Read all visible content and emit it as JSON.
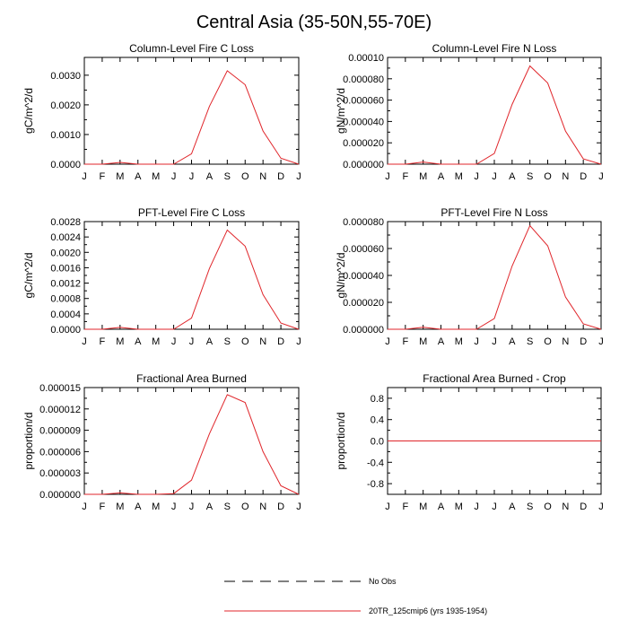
{
  "title": "Central Asia (35-50N,55-70E)",
  "legend": {
    "entries": [
      {
        "label": "No Obs",
        "style": "dashed",
        "color": "#000000"
      },
      {
        "label": "20TR_125cmip6 (yrs 1935-1954)",
        "style": "solid",
        "color": "#e0262b"
      }
    ]
  },
  "chart_data": [
    {
      "type": "line",
      "title": "Column-Level Fire C Loss",
      "ylabel": "gC/m^2/d",
      "ylim": [
        0,
        0.0036
      ],
      "yticks": [
        0,
        0.001,
        0.002,
        0.003
      ],
      "yticklabels": [
        "0.0000",
        "0.0010",
        "0.0020",
        "0.0030"
      ],
      "x": [
        "J",
        "F",
        "M",
        "A",
        "M",
        "J",
        "J",
        "A",
        "S",
        "O",
        "N",
        "D",
        "J"
      ],
      "series": [
        {
          "color": "#e0262b",
          "values": [
            0,
            0,
            6e-05,
            0,
            0,
            0,
            0.00035,
            0.00195,
            0.00315,
            0.00268,
            0.00112,
            0.0002,
            0
          ]
        }
      ]
    },
    {
      "type": "line",
      "title": "Column-Level Fire N Loss",
      "ylabel": "gN/m^2/d",
      "ylim": [
        0,
        0.0001
      ],
      "yticks": [
        0,
        2e-05,
        4e-05,
        6e-05,
        8e-05,
        0.0001
      ],
      "yticklabels": [
        "0.000000",
        "0.000020",
        "0.000040",
        "0.000060",
        "0.000080",
        "0.00010"
      ],
      "x": [
        "J",
        "F",
        "M",
        "A",
        "M",
        "J",
        "J",
        "A",
        "S",
        "O",
        "N",
        "D",
        "J"
      ],
      "series": [
        {
          "color": "#e0262b",
          "values": [
            0,
            0,
            2e-06,
            0,
            0,
            0,
            1e-05,
            5.6e-05,
            9.2e-05,
            7.6e-05,
            3.1e-05,
            5e-06,
            0
          ]
        }
      ]
    },
    {
      "type": "line",
      "title": "PFT-Level Fire C Loss",
      "ylabel": "gC/m^2/d",
      "ylim": [
        0,
        0.0028
      ],
      "yticks": [
        0,
        0.0004,
        0.0008,
        0.0012,
        0.0016,
        0.002,
        0.0024,
        0.0028
      ],
      "yticklabels": [
        "0.0000",
        "0.0004",
        "0.0008",
        "0.0012",
        "0.0016",
        "0.0020",
        "0.0024",
        "0.0028"
      ],
      "x": [
        "J",
        "F",
        "M",
        "A",
        "M",
        "J",
        "J",
        "A",
        "S",
        "O",
        "N",
        "D",
        "J"
      ],
      "series": [
        {
          "color": "#e0262b",
          "values": [
            0,
            0,
            5e-05,
            0,
            0,
            0,
            0.00029,
            0.00158,
            0.00258,
            0.00216,
            0.0009,
            0.00016,
            0
          ]
        }
      ]
    },
    {
      "type": "line",
      "title": "PFT-Level Fire N Loss",
      "ylabel": "gN/m^2/d",
      "ylim": [
        0,
        8e-05
      ],
      "yticks": [
        0,
        2e-05,
        4e-05,
        6e-05,
        8e-05
      ],
      "yticklabels": [
        "0.000000",
        "0.000020",
        "0.000040",
        "0.000060",
        "0.000080"
      ],
      "x": [
        "J",
        "F",
        "M",
        "A",
        "M",
        "J",
        "J",
        "A",
        "S",
        "O",
        "N",
        "D",
        "J"
      ],
      "series": [
        {
          "color": "#e0262b",
          "values": [
            0,
            0,
            1.5e-06,
            0,
            0,
            0,
            8e-06,
            4.7e-05,
            7.7e-05,
            6.2e-05,
            2.4e-05,
            4e-06,
            0
          ]
        }
      ]
    },
    {
      "type": "line",
      "title": "Fractional Area Burned",
      "ylabel": "proportion/d",
      "ylim": [
        0,
        1.5e-05
      ],
      "yticks": [
        0,
        3e-06,
        6e-06,
        9e-06,
        1.2e-05,
        1.5e-05
      ],
      "yticklabels": [
        "0.000000",
        "0.000003",
        "0.000006",
        "0.000009",
        "0.000012",
        "0.000015"
      ],
      "x": [
        "J",
        "F",
        "M",
        "A",
        "M",
        "J",
        "J",
        "A",
        "S",
        "O",
        "N",
        "D",
        "J"
      ],
      "series": [
        {
          "color": "#e0262b",
          "values": [
            0,
            0,
            2e-07,
            0,
            0,
            1e-07,
            2e-06,
            8.5e-06,
            1.4e-05,
            1.29e-05,
            6e-06,
            1.2e-06,
            0
          ]
        }
      ]
    },
    {
      "type": "line",
      "title": "Fractional Area Burned - Crop",
      "ylabel": "proportion/d",
      "ylim": [
        -1,
        1
      ],
      "yticks": [
        -0.8,
        -0.4,
        0,
        0.4,
        0.8
      ],
      "yticklabels": [
        "-0.8",
        "-0.4",
        "0.0",
        "0.4",
        "0.8"
      ],
      "x": [
        "J",
        "F",
        "M",
        "A",
        "M",
        "J",
        "J",
        "A",
        "S",
        "O",
        "N",
        "D",
        "J"
      ],
      "series": [
        {
          "color": "#e0262b",
          "values": [
            0,
            0,
            0,
            0,
            0,
            0,
            0,
            0,
            0,
            0,
            0,
            0,
            0
          ]
        }
      ]
    }
  ]
}
